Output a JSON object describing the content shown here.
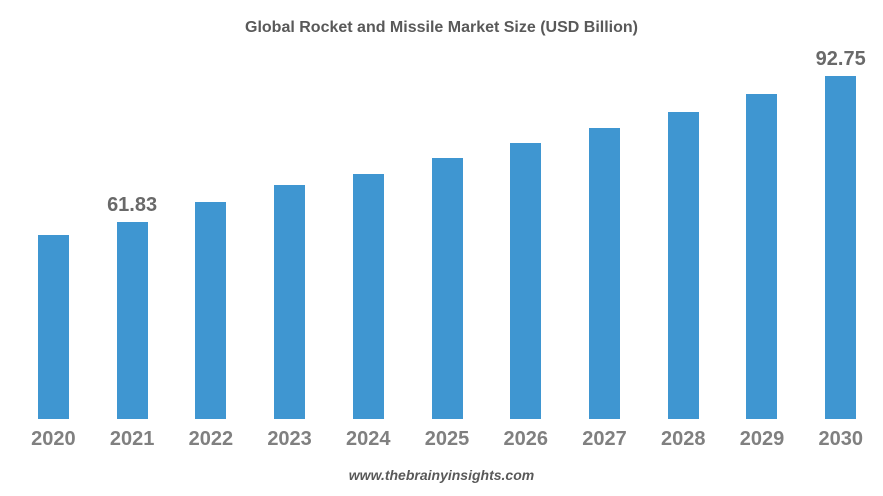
{
  "chart_data": {
    "type": "bar",
    "title": "Global Rocket and Missile Market Size (USD Billion)",
    "categories": [
      "2020",
      "2021",
      "2022",
      "2023",
      "2024",
      "2025",
      "2026",
      "2027",
      "2028",
      "2029",
      "2030"
    ],
    "values": [
      59.08,
      61.83,
      66.07,
      69.67,
      72.0,
      75.39,
      78.57,
      81.74,
      85.13,
      88.95,
      92.75
    ],
    "data_labels": [
      "",
      "61.83",
      "",
      "",
      "",
      "",
      "",
      "",
      "",
      "",
      "92.75"
    ],
    "xlabel": "",
    "ylabel": "",
    "ylim": [
      20.1,
      108.9
    ],
    "grid": false,
    "legend": "none",
    "axis_lines": false,
    "bar_color": "#3F96D1"
  },
  "colors": {
    "background": "#ffffff",
    "title": "#595959",
    "data_label": "#696969",
    "axis_label": "#808080",
    "watermark": "#595959"
  },
  "footer": {
    "watermark": "www.thebrainyinsights.com"
  }
}
